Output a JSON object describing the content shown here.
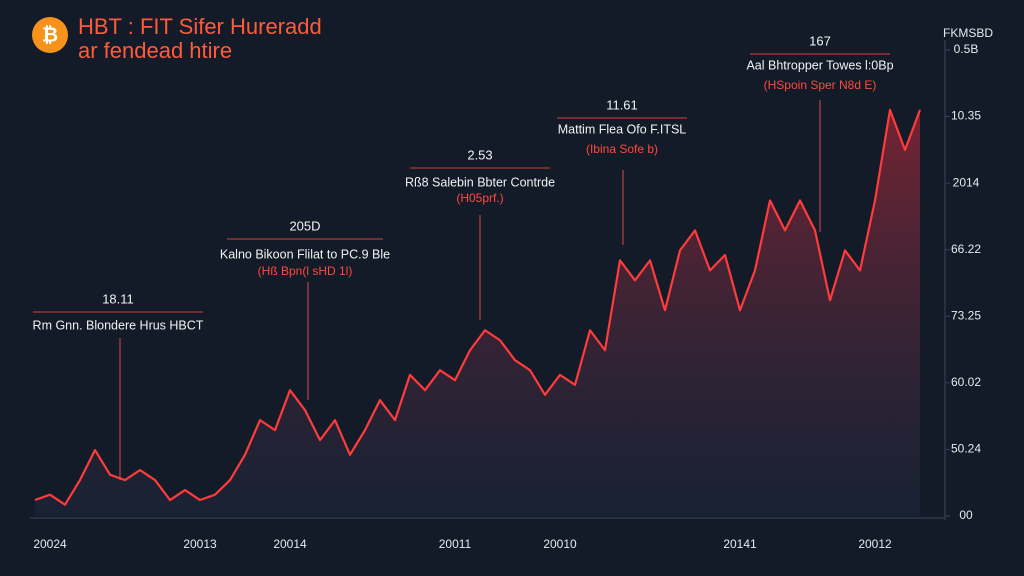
{
  "chart_data": {
    "type": "line",
    "title": "HBT : FIT Sifer Hureradd",
    "subtitle": "ar fendead htire",
    "y_label": "FKMSBD",
    "categories": [
      null,
      "20024",
      null,
      null,
      null,
      null,
      null,
      null,
      null,
      null,
      null,
      "20013",
      null,
      null,
      null,
      null,
      null,
      "20014",
      null,
      null,
      null,
      null,
      null,
      null,
      null,
      null,
      null,
      null,
      "20011",
      null,
      null,
      null,
      null,
      null,
      null,
      "20010",
      null,
      null,
      null,
      null,
      null,
      null,
      null,
      null,
      null,
      null,
      null,
      "20141",
      null,
      null,
      null,
      null,
      null,
      null,
      null,
      null,
      "20012",
      null,
      null,
      null
    ],
    "series": [
      {
        "color": "#ff3b3b",
        "values": [
          0.24,
          0.32,
          0.17,
          0.54,
          0.99,
          0.62,
          0.54,
          0.69,
          0.54,
          0.24,
          0.39,
          0.24,
          0.32,
          0.54,
          0.92,
          1.44,
          1.29,
          1.89,
          1.59,
          1.14,
          1.44,
          0.92,
          1.29,
          1.74,
          1.44,
          2.12,
          1.89,
          2.19,
          2.04,
          2.49,
          2.79,
          2.64,
          2.34,
          2.19,
          1.82,
          2.12,
          1.97,
          2.79,
          2.49,
          3.84,
          3.54,
          3.84,
          3.09,
          3.99,
          4.29,
          3.69,
          3.92,
          3.09,
          3.69,
          4.74,
          4.29,
          4.74,
          4.29,
          3.24,
          3.99,
          3.69,
          4.74,
          6.1,
          5.5,
          6.1
        ]
      }
    ],
    "ylim": [
      0,
      7
    ],
    "yticks": [
      {
        "value": 0,
        "label": "00"
      },
      {
        "value": 1,
        "label": "50.24"
      },
      {
        "value": 2,
        "label": "60.02"
      },
      {
        "value": 3,
        "label": "73.25"
      },
      {
        "value": 4,
        "label": "66.22"
      },
      {
        "value": 5,
        "label": "2014"
      },
      {
        "value": 6,
        "label": "10.35"
      },
      {
        "value": 7,
        "label": "0.5B"
      }
    ],
    "annotations": [
      {
        "value": "18.11",
        "label": "Rm Gnn. Blondere Hrus HBCT"
      },
      {
        "value": "205D",
        "label": "Kalno Bikoon Flilat to PC.9 Ble",
        "note": "(Hß Bpn(l sHD 1l)"
      },
      {
        "value": "2.53",
        "label": "Rß8 Salebin Bbter Contrde",
        "note": "(H05prf.)"
      },
      {
        "value": "11.61",
        "label": "Mattim Flea Ofo F.ITSL",
        "note": "(Ibina Sofe b)"
      },
      {
        "value": "167",
        "label": "Aal Bhtropper Towes l:0Bp",
        "note": "(HSpoin Sper N8d E)"
      }
    ]
  }
}
